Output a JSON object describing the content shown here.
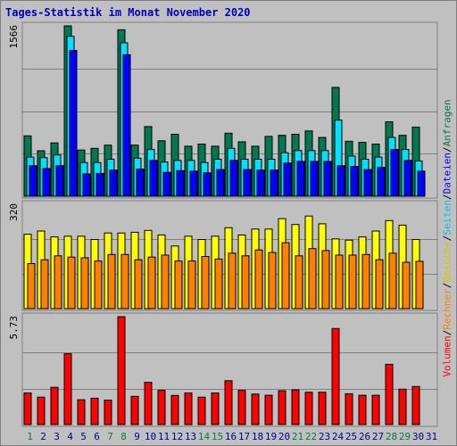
{
  "chart_data": {
    "type": "bar",
    "title": "Tages-Statistik im Monat November 2020",
    "days": [
      "1",
      "2",
      "3",
      "4",
      "5",
      "6",
      "7",
      "8",
      "9",
      "10",
      "11",
      "12",
      "13",
      "14",
      "15",
      "16",
      "17",
      "18",
      "19",
      "20",
      "21",
      "22",
      "23",
      "24",
      "25",
      "26",
      "27",
      "28",
      "29",
      "30",
      "31"
    ],
    "weekend_days": [
      "1",
      "7",
      "8",
      "14",
      "15",
      "21",
      "22",
      "28",
      "29"
    ],
    "weekend_color": "#008040",
    "weekday_color": "#0000a0",
    "grid": true,
    "panels": [
      {
        "name": "requests-pages",
        "ymax_label": "1566",
        "ymax": 1566,
        "series": [
          {
            "name": "Anfragen",
            "color": "#007850",
            "values": [
              555,
              418,
              490,
              1566,
              425,
              440,
              470,
              1530,
              470,
              640,
              510,
              570,
              460,
              480,
              460,
              580,
              500,
              460,
              550,
              560,
              570,
              600,
              540,
              1000,
              505,
              495,
              480,
              685,
              560,
              635,
              null
            ]
          },
          {
            "name": "Seiten",
            "color": "#00e0ff",
            "values": [
              360,
              355,
              380,
              1470,
              310,
              310,
              340,
              1410,
              350,
              430,
              315,
              330,
              330,
              310,
              340,
              440,
              340,
              340,
              340,
              400,
              420,
              420,
              420,
              700,
              370,
              340,
              360,
              540,
              430,
              325,
              null
            ]
          },
          {
            "name": "Dateien",
            "color": "#0000ff",
            "values": [
              280,
              255,
              280,
              1340,
              205,
              210,
              240,
              1300,
              250,
              330,
              220,
              235,
              230,
              215,
              245,
              330,
              245,
              240,
              240,
              305,
              320,
              320,
              320,
              280,
              275,
              245,
              265,
              430,
              330,
              230,
              null
            ]
          }
        ]
      },
      {
        "name": "visits",
        "ymax_label": "320",
        "ymax": 320,
        "series": [
          {
            "name": "Besuche",
            "color": "#ffff00",
            "values": [
              228,
              238,
              220,
              222,
              222,
              212,
              232,
              232,
              234,
              240,
              226,
              192,
              222,
              212,
              222,
              248,
              226,
              244,
              244,
              276,
              258,
              284,
              260,
              214,
              210,
              220,
              238,
              270,
              256,
              212,
              null
            ]
          },
          {
            "name": "Rechner",
            "color": "#ff8000",
            "values": [
              138,
              150,
              162,
              158,
              156,
              146,
              166,
              166,
              150,
              158,
              164,
              146,
              146,
              160,
              152,
              170,
              162,
              180,
              172,
              202,
              162,
              184,
              178,
              164,
              164,
              166,
              150,
              170,
              142,
              145,
              null
            ]
          }
        ]
      },
      {
        "name": "volume",
        "ymax_label": "5.73",
        "ymax": 5.73,
        "series": [
          {
            "name": "Volumen",
            "color": "#ff0000",
            "values": [
              1.68,
              1.46,
              1.98,
              3.76,
              1.32,
              1.4,
              1.3,
              5.73,
              1.5,
              2.25,
              1.82,
              1.55,
              1.68,
              1.46,
              1.68,
              2.33,
              1.82,
              1.62,
              1.56,
              1.8,
              1.84,
              1.72,
              1.72,
              5.1,
              1.64,
              1.56,
              1.56,
              3.2,
              1.88,
              2.02,
              null
            ]
          }
        ]
      }
    ],
    "legend": [
      {
        "text": "Volumen",
        "color": "#ff0000"
      },
      {
        "text": "/",
        "color": "#000000"
      },
      {
        "text": "Rechner",
        "color": "#ff8000"
      },
      {
        "text": "/",
        "color": "#000000"
      },
      {
        "text": "Besuche",
        "color": "#e0c000"
      },
      {
        "text": "/",
        "color": "#000000"
      },
      {
        "text": "Seiten",
        "color": "#00c0ff"
      },
      {
        "text": "/",
        "color": "#000000"
      },
      {
        "text": "Dateien",
        "color": "#0000ff"
      },
      {
        "text": "/",
        "color": "#000000"
      },
      {
        "text": "Anfragen",
        "color": "#007850"
      }
    ]
  }
}
